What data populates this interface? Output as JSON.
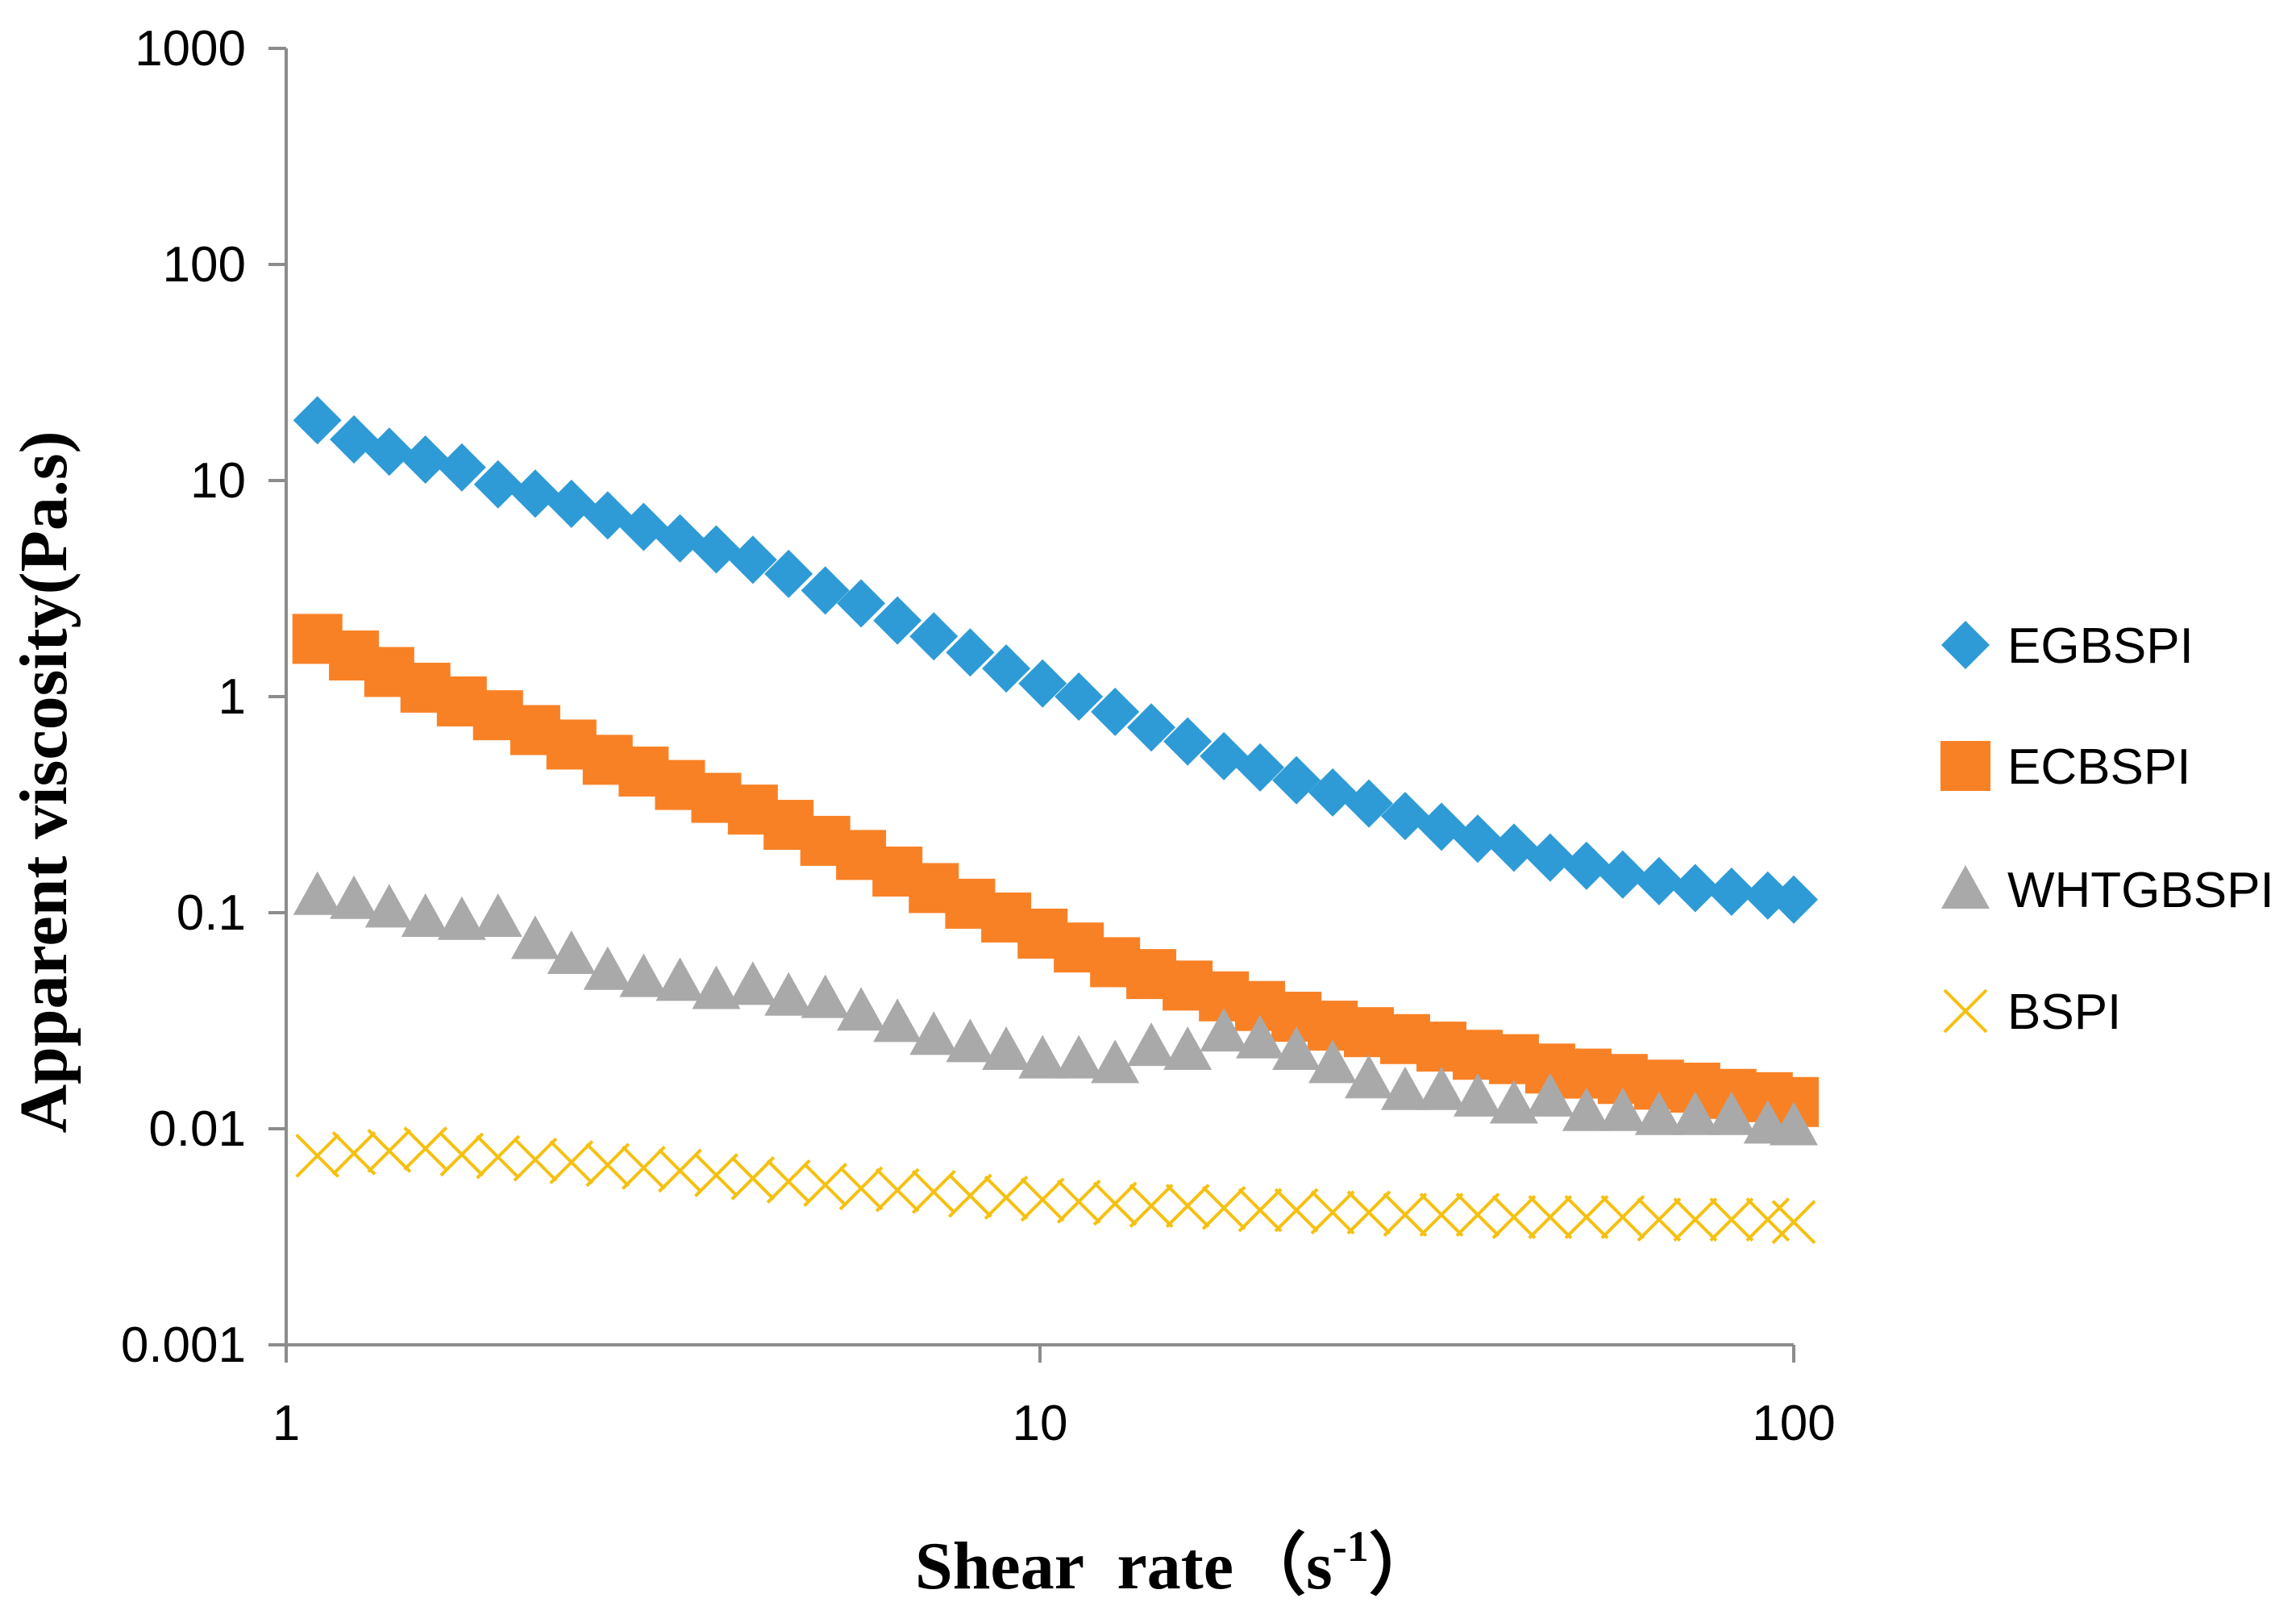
{
  "chart_data": {
    "type": "scatter",
    "title": "",
    "xlabel": "Shear rate（s-1）",
    "xlabel_main": "Shear  rate",
    "xlabel_open": "（",
    "xlabel_unit": "s",
    "xlabel_exp": "-1",
    "xlabel_close": "）",
    "ylabel": "Apparent viscosity(Pa.s)",
    "xscale": "log",
    "yscale": "log",
    "xlim": [
      1,
      100
    ],
    "ylim": [
      0.001,
      1000
    ],
    "x_tick_labels": [
      "1",
      "10",
      "100"
    ],
    "y_tick_labels": [
      "0.001",
      "0.01",
      "0.1",
      "1",
      "10",
      "100",
      "1000"
    ],
    "grid": false,
    "legend_position": "right",
    "colors": {
      "EGBSPI": "#2e9bd6",
      "ECBSPI": "#f98125",
      "WHTGBSPI": "#a9a9a9",
      "BSPI": "#f5c010",
      "axis": "#8c8c8c"
    },
    "x": [
      1.1,
      1.23,
      1.37,
      1.53,
      1.71,
      1.91,
      2.14,
      2.39,
      2.67,
      2.98,
      3.33,
      3.72,
      4.16,
      4.64,
      5.19,
      5.79,
      6.47,
      7.23,
      8.08,
      9.02,
      10.08,
      11.26,
      12.58,
      14.05,
      15.7,
      17.54,
      19.59,
      21.89,
      24.45,
      27.31,
      30.51,
      34.09,
      38.08,
      42.54,
      47.52,
      53.09,
      59.31,
      66.26,
      74.02,
      82.69,
      92.37,
      100.0
    ],
    "series": [
      {
        "name": "EGBSPI",
        "marker": "diamond",
        "values": [
          19.0,
          15.5,
          13.6,
          12.5,
          11.5,
          9.6,
          8.7,
          7.8,
          6.9,
          6.1,
          5.4,
          4.8,
          4.3,
          3.7,
          3.1,
          2.7,
          2.25,
          1.9,
          1.6,
          1.35,
          1.15,
          1.0,
          0.85,
          0.72,
          0.62,
          0.53,
          0.47,
          0.41,
          0.36,
          0.32,
          0.28,
          0.25,
          0.22,
          0.2,
          0.18,
          0.165,
          0.15,
          0.14,
          0.13,
          0.125,
          0.12,
          0.115
        ]
      },
      {
        "name": "ECBSPI",
        "marker": "square",
        "values": [
          1.85,
          1.55,
          1.3,
          1.1,
          0.95,
          0.82,
          0.7,
          0.6,
          0.51,
          0.45,
          0.39,
          0.34,
          0.3,
          0.255,
          0.215,
          0.185,
          0.155,
          0.13,
          0.11,
          0.095,
          0.08,
          0.069,
          0.059,
          0.052,
          0.046,
          0.041,
          0.037,
          0.033,
          0.03,
          0.028,
          0.026,
          0.024,
          0.022,
          0.021,
          0.019,
          0.018,
          0.017,
          0.016,
          0.0155,
          0.0145,
          0.014,
          0.0133
        ]
      },
      {
        "name": "WHTGBSPI",
        "marker": "triangle",
        "values": [
          0.12,
          0.115,
          0.105,
          0.095,
          0.092,
          0.095,
          0.075,
          0.064,
          0.054,
          0.05,
          0.048,
          0.044,
          0.046,
          0.041,
          0.04,
          0.035,
          0.031,
          0.027,
          0.025,
          0.023,
          0.021,
          0.021,
          0.02,
          0.024,
          0.023,
          0.028,
          0.026,
          0.023,
          0.02,
          0.017,
          0.015,
          0.015,
          0.014,
          0.013,
          0.014,
          0.012,
          0.012,
          0.0115,
          0.0115,
          0.0115,
          0.0105,
          0.0103
        ]
      },
      {
        "name": "BSPI",
        "marker": "x",
        "values": [
          0.0075,
          0.0077,
          0.0079,
          0.0081,
          0.0076,
          0.0074,
          0.0072,
          0.007,
          0.0068,
          0.0066,
          0.0064,
          0.0061,
          0.0059,
          0.0057,
          0.0055,
          0.0053,
          0.0052,
          0.0051,
          0.0049,
          0.0048,
          0.0047,
          0.0046,
          0.0045,
          0.0044,
          0.0044,
          0.0043,
          0.0042,
          0.0042,
          0.0041,
          0.0041,
          0.004,
          0.004,
          0.004,
          0.0039,
          0.0039,
          0.0039,
          0.0039,
          0.0038,
          0.0038,
          0.0038,
          0.0038,
          0.0037
        ]
      }
    ]
  }
}
